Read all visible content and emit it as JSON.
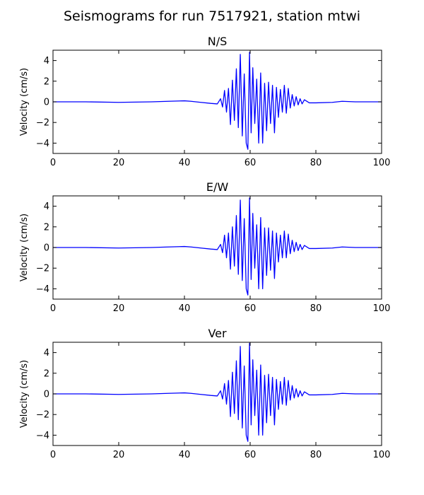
{
  "title": "Seismograms for run 7517921, station mtwi",
  "line_color": "#0000ff",
  "chart_data": [
    {
      "type": "line",
      "title": "N/S",
      "xlabel": "",
      "ylabel": "Velocity (cm/s)",
      "xlim": [
        0,
        100
      ],
      "ylim": [
        -5,
        5
      ],
      "xticks": [
        0,
        20,
        40,
        60,
        80,
        100
      ],
      "yticks": [
        -4,
        -2,
        0,
        2,
        4
      ],
      "grid": false,
      "series": [
        {
          "x": [
            0,
            10,
            20,
            30,
            35,
            40,
            42,
            45,
            48,
            50,
            51,
            51.6,
            52.2,
            52.8,
            53.4,
            54,
            54.6,
            55.2,
            55.8,
            56.4,
            57,
            57.6,
            58.2,
            58.8,
            59.3,
            59.8,
            60.3,
            60.8,
            61.4,
            62,
            62.6,
            63.2,
            63.8,
            64.4,
            65,
            65.6,
            66.2,
            66.8,
            67.4,
            68,
            68.6,
            69.2,
            69.8,
            70.4,
            71,
            71.6,
            72.2,
            72.8,
            73.4,
            74,
            74.6,
            75.2,
            75.8,
            76.5,
            78,
            80,
            85,
            88,
            92,
            96,
            100
          ],
          "y": [
            0,
            0,
            -0.05,
            0,
            0.05,
            0.1,
            0.05,
            -0.05,
            -0.15,
            -0.2,
            0.3,
            -0.5,
            1.1,
            -1.0,
            1.3,
            -2.2,
            2.1,
            -1.8,
            3.2,
            -2.5,
            4.6,
            -3.3,
            2.7,
            -4.0,
            -4.6,
            4.8,
            -3.0,
            3.3,
            -2.1,
            2.2,
            -4.0,
            2.8,
            -4.0,
            1.8,
            -2.8,
            1.9,
            -2.1,
            1.6,
            -3.0,
            1.4,
            -1.5,
            1.2,
            -1.0,
            1.6,
            -1.1,
            1.3,
            -0.6,
            0.7,
            -0.4,
            0.5,
            -0.3,
            0.3,
            -0.2,
            0.2,
            -0.1,
            -0.1,
            -0.05,
            0.05,
            0,
            0,
            0
          ]
        }
      ]
    },
    {
      "type": "line",
      "title": "E/W",
      "xlabel": "",
      "ylabel": "Velocity (cm/s)",
      "xlim": [
        0,
        100
      ],
      "ylim": [
        -5,
        5
      ],
      "xticks": [
        0,
        20,
        40,
        60,
        80,
        100
      ],
      "yticks": [
        -4,
        -2,
        0,
        2,
        4
      ],
      "grid": false,
      "series": [
        {
          "x": [
            0,
            10,
            20,
            30,
            35,
            40,
            42,
            45,
            48,
            50,
            51,
            51.6,
            52.2,
            52.8,
            53.4,
            54,
            54.6,
            55.2,
            55.8,
            56.4,
            57,
            57.6,
            58.2,
            58.8,
            59.3,
            59.8,
            60.3,
            60.8,
            61.4,
            62,
            62.6,
            63.2,
            63.8,
            64.4,
            65,
            65.6,
            66.2,
            66.8,
            67.4,
            68,
            68.6,
            69.2,
            69.8,
            70.4,
            71,
            71.6,
            72.2,
            72.8,
            73.4,
            74,
            74.6,
            75.2,
            75.8,
            76.5,
            78,
            80,
            85,
            88,
            92,
            96,
            100
          ],
          "y": [
            0,
            0,
            -0.05,
            0,
            0.05,
            0.1,
            0.05,
            -0.05,
            -0.15,
            -0.2,
            0.3,
            -0.5,
            1.2,
            -1.0,
            1.4,
            -2.1,
            2.0,
            -1.8,
            3.1,
            -2.6,
            4.6,
            -3.2,
            2.8,
            -4.0,
            -4.6,
            4.8,
            -3.1,
            3.3,
            -2.0,
            2.2,
            -4.0,
            2.9,
            -4.0,
            1.9,
            -2.7,
            1.9,
            -2.2,
            1.6,
            -3.0,
            1.4,
            -1.4,
            1.2,
            -1.0,
            1.6,
            -1.0,
            1.3,
            -0.6,
            0.7,
            -0.4,
            0.5,
            -0.3,
            0.3,
            -0.2,
            0.2,
            -0.1,
            -0.1,
            -0.05,
            0.05,
            0,
            0,
            0
          ]
        }
      ]
    },
    {
      "type": "line",
      "title": "Ver",
      "xlabel": "",
      "ylabel": "Velocity (cm/s)",
      "xlim": [
        0,
        100
      ],
      "ylim": [
        -5,
        5
      ],
      "xticks": [
        0,
        20,
        40,
        60,
        80,
        100
      ],
      "yticks": [
        -4,
        -2,
        0,
        2,
        4
      ],
      "grid": false,
      "series": [
        {
          "x": [
            0,
            10,
            20,
            30,
            35,
            40,
            42,
            45,
            48,
            50,
            51,
            51.6,
            52.2,
            52.8,
            53.4,
            54,
            54.6,
            55.2,
            55.8,
            56.4,
            57,
            57.6,
            58.2,
            58.8,
            59.3,
            59.8,
            60.3,
            60.8,
            61.4,
            62,
            62.6,
            63.2,
            63.8,
            64.4,
            65,
            65.6,
            66.2,
            66.8,
            67.4,
            68,
            68.6,
            69.2,
            69.8,
            70.4,
            71,
            71.6,
            72.2,
            72.8,
            73.4,
            74,
            74.6,
            75.2,
            75.8,
            76.5,
            78,
            80,
            85,
            88,
            92,
            96,
            100
          ],
          "y": [
            0,
            0,
            -0.05,
            0,
            0.05,
            0.1,
            0.05,
            -0.05,
            -0.15,
            -0.2,
            0.3,
            -0.5,
            1.0,
            -1.0,
            1.3,
            -2.2,
            2.1,
            -1.9,
            3.2,
            -2.5,
            4.6,
            -3.3,
            2.7,
            -4.0,
            -4.6,
            4.9,
            -3.0,
            3.3,
            -2.1,
            2.3,
            -4.0,
            2.8,
            -4.0,
            1.8,
            -2.8,
            1.9,
            -2.1,
            1.6,
            -3.0,
            1.4,
            -1.5,
            1.2,
            -1.0,
            1.6,
            -1.1,
            1.3,
            -0.6,
            0.8,
            -0.4,
            0.5,
            -0.3,
            0.3,
            -0.2,
            0.2,
            -0.1,
            -0.1,
            -0.05,
            0.05,
            0,
            0,
            0
          ]
        }
      ]
    }
  ]
}
